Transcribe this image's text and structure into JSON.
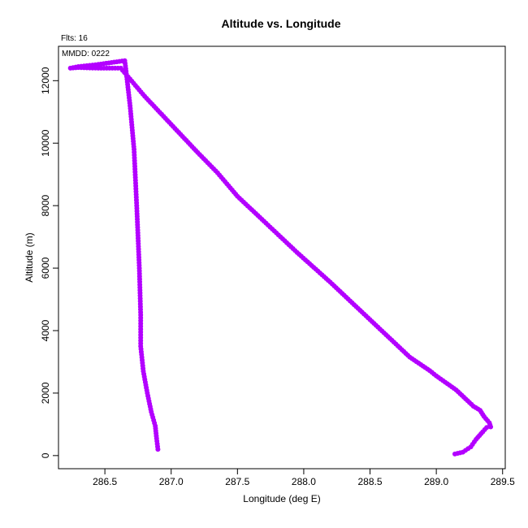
{
  "chart_data": {
    "type": "scatter",
    "title": "Altitude vs. Longitude",
    "xlabel": "Longitude (deg E)",
    "ylabel": "Altitude (m)",
    "annotations": [
      "Flts: 16",
      "MMDD: 0222"
    ],
    "xlim": [
      286.15,
      289.52
    ],
    "ylim": [
      -420,
      13100
    ],
    "xticks": [
      286.5,
      287.0,
      287.5,
      288.0,
      288.5,
      289.0,
      289.5
    ],
    "xtick_labels": [
      "286.5",
      "287.0",
      "287.5",
      "288.0",
      "288.5",
      "289.0",
      "289.5"
    ],
    "yticks": [
      0,
      2000,
      4000,
      6000,
      8000,
      10000,
      12000
    ],
    "ytick_labels": [
      "0",
      "2000",
      "4000",
      "6000",
      "8000",
      "10000",
      "12000"
    ],
    "grid": false,
    "series": [
      {
        "color": "#b300ff",
        "path": [
          [
            289.14,
            50
          ],
          [
            289.2,
            110
          ],
          [
            289.26,
            280
          ],
          [
            289.3,
            520
          ],
          [
            289.35,
            760
          ],
          [
            289.38,
            900
          ],
          [
            289.41,
            920
          ],
          [
            289.4,
            1050
          ],
          [
            289.36,
            1250
          ],
          [
            289.33,
            1450
          ],
          [
            289.28,
            1580
          ],
          [
            289.25,
            1700
          ],
          [
            289.15,
            2100
          ],
          [
            289.0,
            2550
          ],
          [
            288.95,
            2720
          ],
          [
            288.8,
            3150
          ],
          [
            288.5,
            4350
          ],
          [
            288.2,
            5550
          ],
          [
            287.95,
            6500
          ],
          [
            287.7,
            7500
          ],
          [
            287.5,
            8300
          ],
          [
            287.42,
            8700
          ],
          [
            287.35,
            9050
          ],
          [
            287.2,
            9700
          ],
          [
            287.0,
            10600
          ],
          [
            286.8,
            11500
          ],
          [
            286.62,
            12400
          ],
          [
            286.45,
            12400
          ],
          [
            286.3,
            12420
          ],
          [
            286.24,
            12400
          ],
          [
            286.3,
            12450
          ],
          [
            286.45,
            12520
          ],
          [
            286.65,
            12640
          ],
          [
            286.66,
            12300
          ],
          [
            286.69,
            11200
          ],
          [
            286.72,
            9800
          ],
          [
            286.74,
            8000
          ],
          [
            286.76,
            6000
          ],
          [
            286.77,
            4500
          ],
          [
            286.77,
            3500
          ],
          [
            286.79,
            2700
          ],
          [
            286.82,
            2000
          ],
          [
            286.85,
            1400
          ],
          [
            286.88,
            950
          ],
          [
            286.89,
            550
          ],
          [
            286.9,
            200
          ]
        ]
      }
    ]
  }
}
